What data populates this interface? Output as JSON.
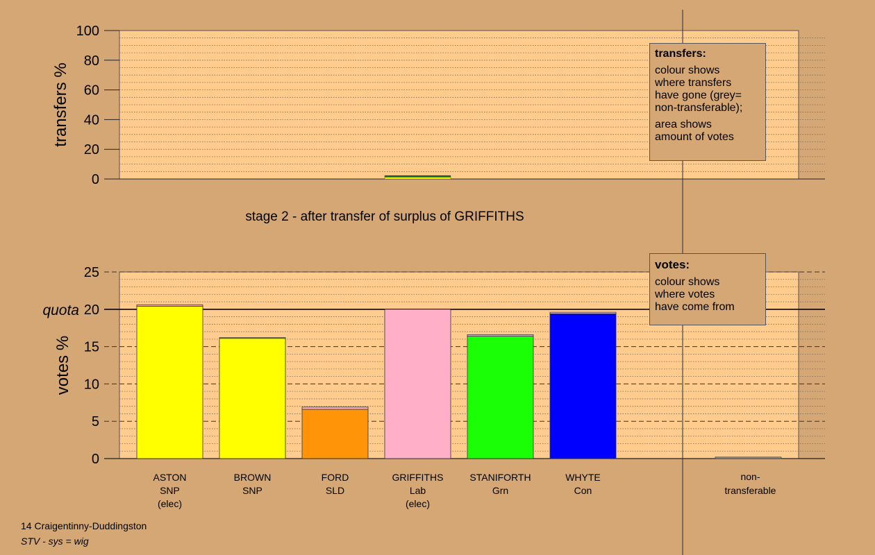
{
  "chart_data": [
    {
      "type": "bar",
      "panel": "transfers",
      "ylabel": "transfers %",
      "ylim": [
        0,
        100
      ],
      "yticks": [
        0,
        20,
        40,
        60,
        80,
        100
      ],
      "grid": "dotted",
      "bars": [
        {
          "index": 3,
          "segments": [
            {
              "color": "#ffff00",
              "value": 1.2
            },
            {
              "color": "#00cc00",
              "value": 0.5
            },
            {
              "color": "#0000ff",
              "value": 0.6
            }
          ]
        }
      ]
    },
    {
      "type": "bar",
      "panel": "votes",
      "ylabel": "votes %",
      "ylim": [
        0,
        25
      ],
      "yticks": [
        0,
        5,
        10,
        15,
        20,
        25
      ],
      "quota": 20,
      "quota_label": "quota",
      "grid": "dotted",
      "categories": [
        {
          "name": "ASTON",
          "party": "SNP",
          "note": "(elec)"
        },
        {
          "name": "BROWN",
          "party": "SNP",
          "note": ""
        },
        {
          "name": "FORD",
          "party": "SLD",
          "note": ""
        },
        {
          "name": "GRIFFITHS",
          "party": "Lab",
          "note": "(elec)"
        },
        {
          "name": "STANIFORTH",
          "party": "Grn",
          "note": ""
        },
        {
          "name": "WHYTE",
          "party": "Con",
          "note": ""
        }
      ],
      "series": [
        {
          "values": [
            20.4,
            16.1,
            6.6,
            20.0,
            16.4,
            19.4
          ],
          "colors": [
            "#ffff00",
            "#ffff00",
            "#ff9408",
            "#ffb0c8",
            "#1aff06",
            "#0000ff"
          ]
        },
        {
          "values": [
            0.2,
            0.1,
            0.3,
            0,
            0.2,
            0.2
          ],
          "color": "#ffb0c8"
        }
      ],
      "nontransferable": {
        "label_line1": "non-",
        "label_line2": "transferable",
        "value": 0.2,
        "color": "#999999"
      }
    }
  ],
  "stage_title": "stage 2 - after transfer of surplus of GRIFFITHS",
  "transfers_box": {
    "title": "transfers:",
    "p1": [
      "colour shows",
      "where transfers",
      "have gone (grey=",
      "non-transferable);"
    ],
    "p2": [
      "area shows",
      "amount of votes"
    ]
  },
  "votes_box": {
    "title": "votes:",
    "p1": [
      "colour shows",
      "where votes",
      "have come from"
    ]
  },
  "footer": {
    "line1": "14 Craigentinny-Duddingston",
    "line2": "STV - sys = wig"
  }
}
